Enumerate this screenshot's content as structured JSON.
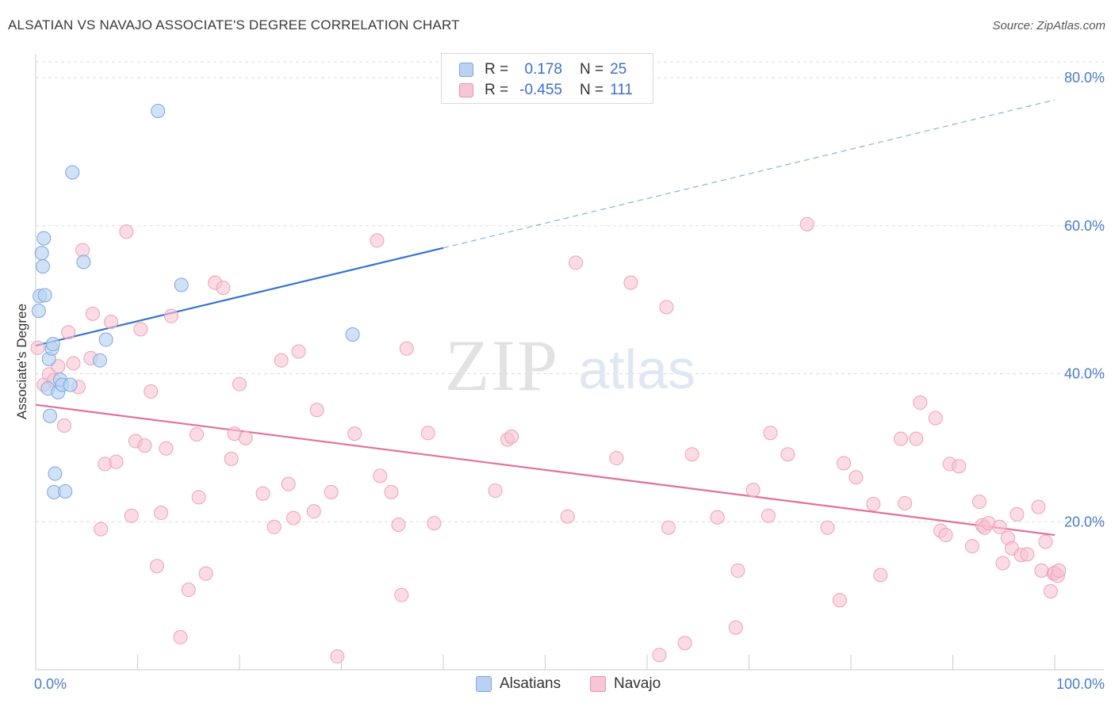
{
  "header": {
    "title": "ALSATIAN VS NAVAJO ASSOCIATE'S DEGREE CORRELATION CHART",
    "source": "Source: ZipAtlas.com"
  },
  "watermark": {
    "zip": "ZIP",
    "atlas": "atlas"
  },
  "legend": {
    "rows": [
      {
        "r_label": "R =",
        "r_value": "0.178",
        "n_label": "N =",
        "n_value": "25",
        "color": "#b9d2f3"
      },
      {
        "r_label": "R =",
        "r_value": "-0.455",
        "n_label": "N =",
        "n_value": "111",
        "color": "#f8c5d4"
      }
    ]
  },
  "bottom_legend": {
    "alsatians": "Alsatians",
    "navajo": "Navajo"
  },
  "chart_data": {
    "type": "scatter",
    "title": "ALSATIAN VS NAVAJO ASSOCIATE'S DEGREE CORRELATION CHART",
    "xlabel": "",
    "ylabel": "Associate's Degree",
    "xlim": [
      0,
      100
    ],
    "ylim": [
      0,
      82
    ],
    "x_tick_labels": [
      "0.0%",
      "100.0%"
    ],
    "x_ticks": [
      0,
      10,
      20,
      30,
      40,
      50,
      60,
      70,
      80,
      90,
      100
    ],
    "y_ticks": [
      20,
      40,
      60,
      80
    ],
    "y_tick_labels": [
      "20.0%",
      "40.0%",
      "60.0%",
      "80.0%"
    ],
    "grid": true,
    "legend_position": "top-center",
    "series": [
      {
        "name": "Alsatians",
        "color": "#8ab4ea",
        "points": [
          [
            0.3,
            48.5
          ],
          [
            0.4,
            50.5
          ],
          [
            0.6,
            56.3
          ],
          [
            0.7,
            54.5
          ],
          [
            0.8,
            58.3
          ],
          [
            0.9,
            50.6
          ],
          [
            1.2,
            38.0
          ],
          [
            1.3,
            42.0
          ],
          [
            1.4,
            34.3
          ],
          [
            1.6,
            43.4
          ],
          [
            1.7,
            44.0
          ],
          [
            1.8,
            24.0
          ],
          [
            1.9,
            26.5
          ],
          [
            2.2,
            37.5
          ],
          [
            2.4,
            39.2
          ],
          [
            2.6,
            38.5
          ],
          [
            2.9,
            24.1
          ],
          [
            3.4,
            38.5
          ],
          [
            3.6,
            67.2
          ],
          [
            4.7,
            55.1
          ],
          [
            6.3,
            41.8
          ],
          [
            6.9,
            44.6
          ],
          [
            12.0,
            75.5
          ],
          [
            14.3,
            52.0
          ],
          [
            31.1,
            45.3
          ]
        ],
        "trend": {
          "x0": 0,
          "y0": 43.8,
          "x1": 40,
          "y1": 57.0,
          "dashed_to_x": 100,
          "dashed_to_y": 77.0
        }
      },
      {
        "name": "Navajo",
        "color": "#f29ab7",
        "points": [
          [
            0.2,
            43.5
          ],
          [
            0.8,
            38.5
          ],
          [
            1.3,
            39.9
          ],
          [
            1.8,
            39.1
          ],
          [
            2.2,
            41.0
          ],
          [
            2.8,
            33.0
          ],
          [
            3.2,
            45.6
          ],
          [
            3.7,
            41.4
          ],
          [
            4.2,
            38.2
          ],
          [
            4.6,
            56.7
          ],
          [
            5.4,
            42.1
          ],
          [
            5.6,
            48.1
          ],
          [
            6.4,
            19.0
          ],
          [
            6.8,
            27.8
          ],
          [
            7.4,
            47.0
          ],
          [
            7.9,
            28.1
          ],
          [
            8.9,
            59.2
          ],
          [
            9.4,
            20.8
          ],
          [
            9.8,
            30.9
          ],
          [
            10.3,
            46.0
          ],
          [
            10.7,
            30.3
          ],
          [
            11.3,
            37.6
          ],
          [
            11.9,
            14.0
          ],
          [
            12.3,
            21.2
          ],
          [
            12.8,
            29.9
          ],
          [
            13.3,
            47.8
          ],
          [
            14.2,
            4.4
          ],
          [
            15.0,
            10.8
          ],
          [
            15.8,
            31.8
          ],
          [
            16.0,
            23.3
          ],
          [
            16.7,
            13.0
          ],
          [
            17.6,
            52.3
          ],
          [
            18.4,
            51.6
          ],
          [
            19.2,
            28.5
          ],
          [
            19.5,
            31.9
          ],
          [
            20.0,
            38.6
          ],
          [
            20.6,
            31.3
          ],
          [
            22.3,
            23.8
          ],
          [
            23.4,
            19.3
          ],
          [
            24.1,
            41.8
          ],
          [
            24.8,
            25.1
          ],
          [
            25.3,
            20.5
          ],
          [
            25.8,
            43.0
          ],
          [
            27.3,
            21.4
          ],
          [
            27.6,
            35.1
          ],
          [
            29.0,
            24.0
          ],
          [
            29.6,
            1.8
          ],
          [
            31.3,
            31.9
          ],
          [
            33.5,
            58.0
          ],
          [
            33.8,
            26.2
          ],
          [
            34.9,
            24.0
          ],
          [
            35.6,
            19.6
          ],
          [
            35.9,
            10.1
          ],
          [
            36.4,
            43.4
          ],
          [
            38.5,
            32.0
          ],
          [
            39.1,
            19.8
          ],
          [
            45.1,
            24.2
          ],
          [
            46.3,
            31.1
          ],
          [
            46.7,
            31.5
          ],
          [
            52.2,
            20.7
          ],
          [
            53.0,
            55.0
          ],
          [
            57.0,
            28.6
          ],
          [
            58.4,
            52.3
          ],
          [
            61.2,
            2.0
          ],
          [
            61.9,
            49.0
          ],
          [
            62.1,
            19.2
          ],
          [
            63.7,
            3.6
          ],
          [
            64.4,
            29.1
          ],
          [
            66.9,
            20.6
          ],
          [
            68.7,
            5.7
          ],
          [
            68.9,
            13.4
          ],
          [
            70.4,
            24.3
          ],
          [
            71.9,
            20.8
          ],
          [
            72.1,
            32.0
          ],
          [
            73.8,
            29.1
          ],
          [
            75.7,
            60.2
          ],
          [
            77.7,
            19.2
          ],
          [
            78.9,
            9.4
          ],
          [
            79.3,
            27.9
          ],
          [
            80.5,
            26.0
          ],
          [
            82.2,
            22.4
          ],
          [
            82.9,
            12.8
          ],
          [
            84.9,
            31.2
          ],
          [
            85.3,
            22.5
          ],
          [
            86.4,
            31.2
          ],
          [
            86.8,
            36.1
          ],
          [
            88.3,
            34.0
          ],
          [
            88.8,
            18.8
          ],
          [
            89.3,
            18.2
          ],
          [
            89.7,
            27.8
          ],
          [
            90.6,
            27.5
          ],
          [
            91.9,
            16.7
          ],
          [
            92.6,
            22.7
          ],
          [
            92.9,
            19.5
          ],
          [
            93.1,
            19.2
          ],
          [
            93.5,
            19.8
          ],
          [
            94.6,
            19.3
          ],
          [
            94.9,
            14.4
          ],
          [
            95.4,
            17.8
          ],
          [
            95.8,
            16.4
          ],
          [
            96.3,
            21.0
          ],
          [
            96.7,
            15.5
          ],
          [
            97.3,
            15.6
          ],
          [
            98.4,
            22.0
          ],
          [
            98.7,
            13.4
          ],
          [
            99.1,
            17.3
          ],
          [
            99.6,
            10.6
          ],
          [
            99.9,
            13.0
          ],
          [
            100.0,
            13.1
          ],
          [
            100.3,
            12.7
          ],
          [
            100.4,
            13.4
          ]
        ],
        "trend": {
          "x0": 0,
          "y0": 35.8,
          "x1": 100,
          "y1": 18.2
        }
      }
    ]
  }
}
